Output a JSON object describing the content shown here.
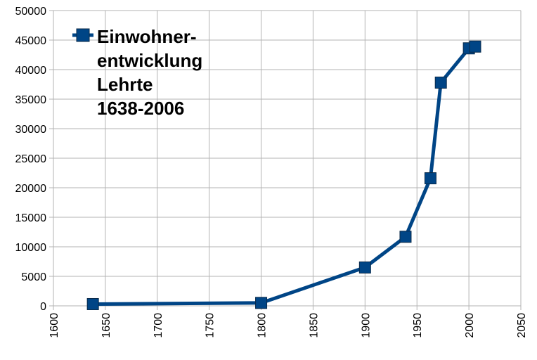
{
  "chart_data": {
    "type": "line",
    "title": "",
    "xlabel": "",
    "ylabel": "",
    "xlim": [
      1600,
      2050
    ],
    "ylim": [
      0,
      50000
    ],
    "x_ticks": [
      1600,
      1650,
      1700,
      1750,
      1800,
      1850,
      1900,
      1950,
      2000,
      2050
    ],
    "y_ticks": [
      0,
      5000,
      10000,
      15000,
      20000,
      25000,
      30000,
      35000,
      40000,
      45000,
      50000
    ],
    "x_tick_labels": [
      "1600",
      "1650",
      "1700",
      "1750",
      "1800",
      "1850",
      "1900",
      "1950",
      "2000",
      "2050"
    ],
    "y_tick_labels": [
      "0",
      "5000",
      "10000",
      "15000",
      "20000",
      "25000",
      "30000",
      "35000",
      "40000",
      "45000",
      "50000"
    ],
    "grid": true,
    "legend_position": "top-left",
    "series": [
      {
        "name": "Einwohner-entwicklung Lehrte 1638-2006",
        "name_lines": [
          "Einwohner-",
          "entwicklung",
          "Lehrte",
          "1638-2006"
        ],
        "color": "#004586",
        "marker": "square",
        "points": [
          {
            "x": 1638,
            "y": 300
          },
          {
            "x": 1800,
            "y": 500
          },
          {
            "x": 1900,
            "y": 6500
          },
          {
            "x": 1939,
            "y": 11700
          },
          {
            "x": 1963,
            "y": 21600
          },
          {
            "x": 1973,
            "y": 37800
          },
          {
            "x": 2000,
            "y": 43600
          },
          {
            "x": 2006,
            "y": 43900
          }
        ]
      }
    ]
  }
}
